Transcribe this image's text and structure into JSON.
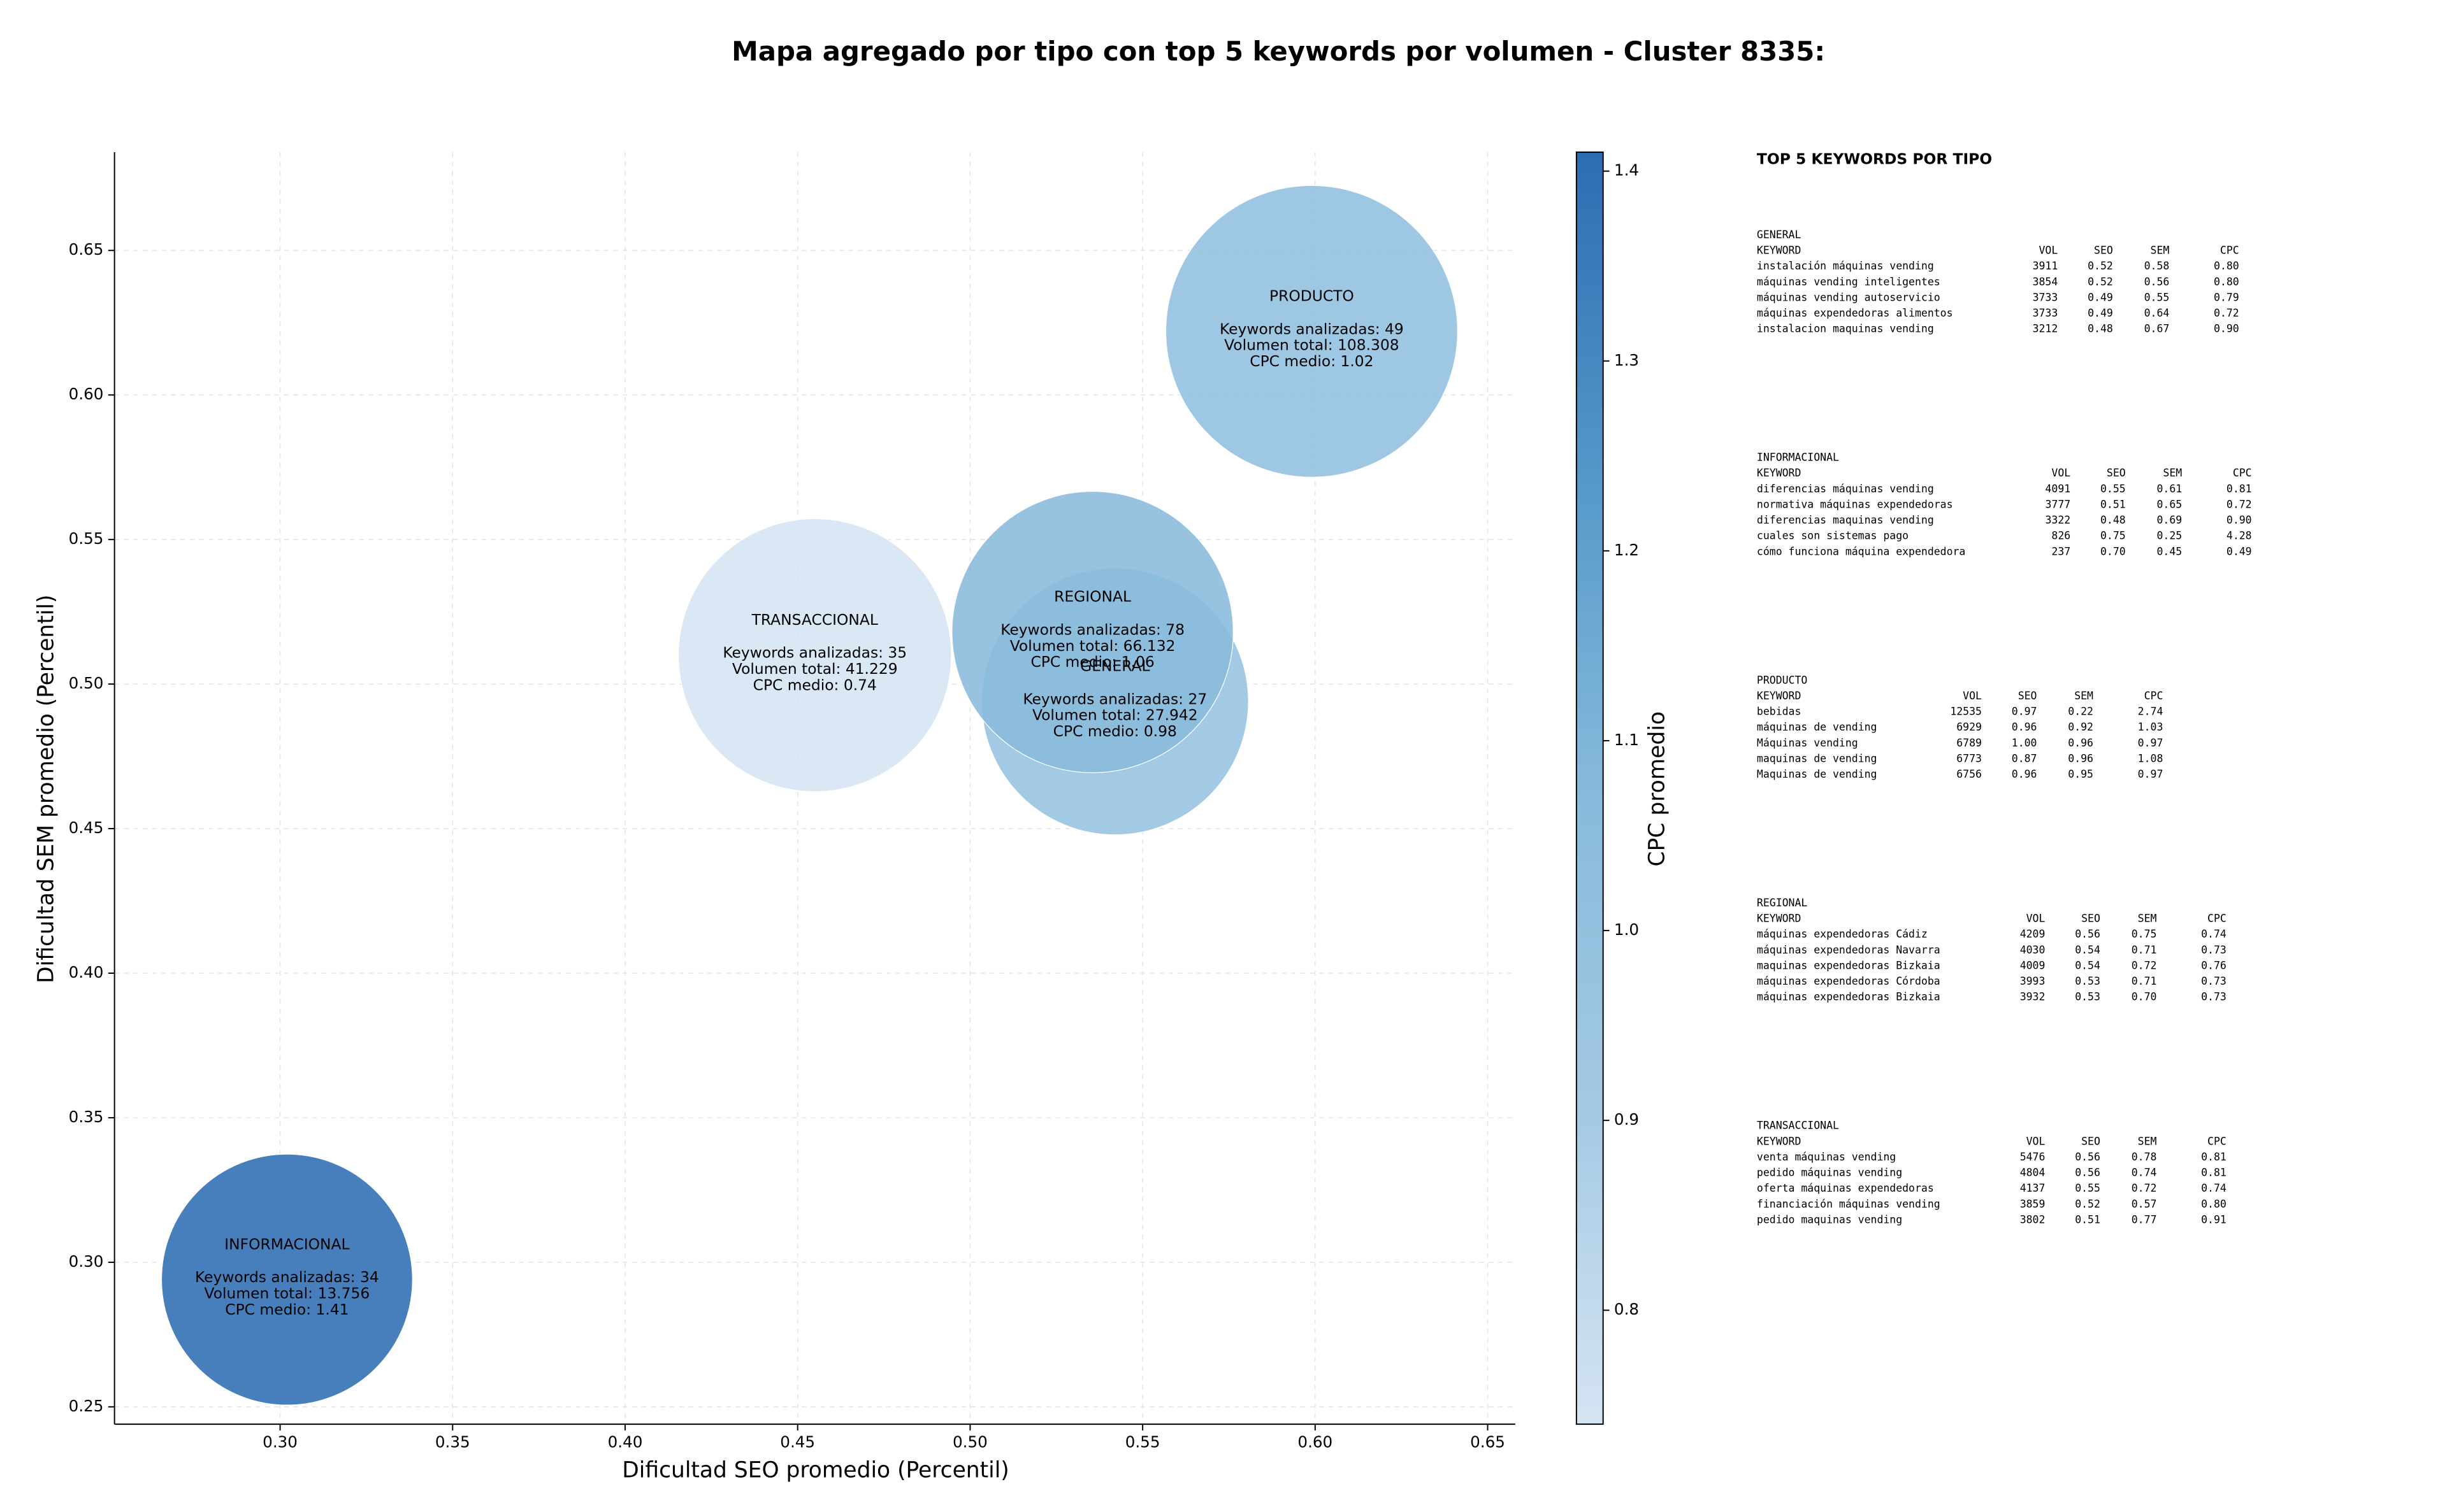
{
  "chart_data": {
    "type": "bubble",
    "title": "Mapa agregado por tipo con top 5 keywords por volumen - Cluster 8335:",
    "x_label": "Dificultad SEO promedio (Percentil)",
    "y_label": "Dificultad SEM promedio (Percentil)",
    "colorbar_label": "CPC promedio",
    "xlim": [
      0.252,
      0.658
    ],
    "ylim": [
      0.244,
      0.684
    ],
    "clim": [
      0.74,
      1.41
    ],
    "colormap": [
      "#d5e4f3",
      "#a3c9e3",
      "#86badb",
      "#5397c9",
      "#2c6db2"
    ],
    "grid": true,
    "xticks": [
      {
        "value": 0.3,
        "label": "0.30"
      },
      {
        "value": 0.35,
        "label": "0.35"
      },
      {
        "value": 0.4,
        "label": "0.40"
      },
      {
        "value": 0.45,
        "label": "0.45"
      },
      {
        "value": 0.5,
        "label": "0.50"
      },
      {
        "value": 0.55,
        "label": "0.55"
      },
      {
        "value": 0.6,
        "label": "0.60"
      },
      {
        "value": 0.65,
        "label": "0.65"
      }
    ],
    "yticks": [
      0.25,
      {
        "value": 0.3,
        "label": "0.30"
      },
      0.35,
      {
        "value": 0.4,
        "label": "0.40"
      },
      0.45,
      {
        "value": 0.5,
        "label": "0.50"
      },
      0.55,
      {
        "value": 0.6,
        "label": "0.60"
      },
      0.65
    ],
    "cticks": [
      0.8,
      0.9,
      {
        "value": 1,
        "label": "1.0"
      },
      1.1,
      1.2,
      1.3,
      1.4
    ],
    "series": [
      {
        "name": "GENERAL",
        "x": 0.542,
        "y": 0.494,
        "size": 27942,
        "cpc": 0.98,
        "keywords": 27,
        "value_labels": [
          "Keywords analizadas: 27",
          "Volumen total: 27.942",
          "CPC medio: 0.98"
        ]
      },
      {
        "name": "REGIONAL",
        "x": 0.5355,
        "y": 0.518,
        "size": 66132,
        "cpc": 1.06,
        "keywords": 78,
        "value_labels": [
          "Keywords analizadas: 78",
          "Volumen total: 66.132",
          "CPC medio: 1.06"
        ]
      },
      {
        "name": "INFORMACIONAL",
        "x": 0.302,
        "y": 0.294,
        "size": 13756,
        "cpc": 1.41,
        "keywords": 34,
        "value_labels": [
          "Keywords analizadas: 34",
          "Volumen total: 13.756",
          "CPC medio: 1.41"
        ]
      },
      {
        "name": "PRODUCTO",
        "x": 0.599,
        "y": 0.622,
        "size": 108308,
        "cpc": 1.02,
        "keywords": 49,
        "value_labels": [
          "Keywords analizadas: 49",
          "Volumen total: 108.308",
          "CPC medio: 1.02"
        ]
      },
      {
        "name": "TRANSACCIONAL",
        "x": 0.455,
        "y": 0.51,
        "size": 41229,
        "cpc": 0.74,
        "keywords": 35,
        "value_labels": [
          "Keywords analizadas: 35",
          "Volumen total: 41.229",
          "CPC medio: 0.74"
        ]
      }
    ]
  },
  "side_panel": {
    "title": "TOP 5 KEYWORDS POR TIPO",
    "columns": [
      "KEYWORD",
      "VOL",
      "SEO",
      "SEM",
      "CPC"
    ],
    "groups": [
      {
        "name": "GENERAL",
        "rows": [
          [
            "instalación máquinas vending",
            "3911",
            "0.52",
            "0.58",
            "0.80"
          ],
          [
            "máquinas vending inteligentes",
            "3854",
            "0.52",
            "0.56",
            "0.80"
          ],
          [
            "máquinas vending autoservicio",
            "3733",
            "0.49",
            "0.55",
            "0.79"
          ],
          [
            "máquinas expendedoras alimentos",
            "3733",
            "0.49",
            "0.64",
            "0.72"
          ],
          [
            "instalacion maquinas vending",
            "3212",
            "0.48",
            "0.67",
            "0.90"
          ]
        ]
      },
      {
        "name": "INFORMACIONAL",
        "rows": [
          [
            "diferencias máquinas vending",
            "4091",
            "0.55",
            "0.61",
            "0.81"
          ],
          [
            "normativa máquinas expendedoras",
            "3777",
            "0.51",
            "0.65",
            "0.72"
          ],
          [
            "diferencias maquinas vending",
            "3322",
            "0.48",
            "0.69",
            "0.90"
          ],
          [
            "cuales son sistemas pago",
            "826",
            "0.75",
            "0.25",
            "4.28"
          ],
          [
            "cómo funciona máquina expendedora",
            "237",
            "0.70",
            "0.45",
            "0.49"
          ]
        ]
      },
      {
        "name": "PRODUCTO",
        "rows": [
          [
            "bebidas",
            "12535",
            "0.97",
            "0.22",
            "2.74"
          ],
          [
            "máquinas de vending",
            "6929",
            "0.96",
            "0.92",
            "1.03"
          ],
          [
            "Máquinas vending",
            "6789",
            "1.00",
            "0.96",
            "0.97"
          ],
          [
            "maquinas de vending",
            "6773",
            "0.87",
            "0.96",
            "1.08"
          ],
          [
            "Maquinas de vending",
            "6756",
            "0.96",
            "0.95",
            "0.97"
          ]
        ]
      },
      {
        "name": "REGIONAL",
        "rows": [
          [
            "máquinas expendedoras Cádiz",
            "4209",
            "0.56",
            "0.75",
            "0.74"
          ],
          [
            "máquinas expendedoras Navarra",
            "4030",
            "0.54",
            "0.71",
            "0.73"
          ],
          [
            "maquinas expendedoras Bizkaia",
            "4009",
            "0.54",
            "0.72",
            "0.76"
          ],
          [
            "máquinas expendedoras Córdoba",
            "3993",
            "0.53",
            "0.71",
            "0.73"
          ],
          [
            "máquinas expendedoras Bizkaia",
            "3932",
            "0.53",
            "0.70",
            "0.73"
          ]
        ]
      },
      {
        "name": "TRANSACCIONAL",
        "rows": [
          [
            "venta máquinas vending",
            "5476",
            "0.56",
            "0.78",
            "0.81"
          ],
          [
            "pedido máquinas vending",
            "4804",
            "0.56",
            "0.74",
            "0.81"
          ],
          [
            "oferta máquinas expendedoras",
            "4137",
            "0.55",
            "0.72",
            "0.74"
          ],
          [
            "financiación máquinas vending",
            "3859",
            "0.52",
            "0.57",
            "0.80"
          ],
          [
            "pedido maquinas vending",
            "3802",
            "0.51",
            "0.77",
            "0.91"
          ]
        ]
      }
    ]
  }
}
